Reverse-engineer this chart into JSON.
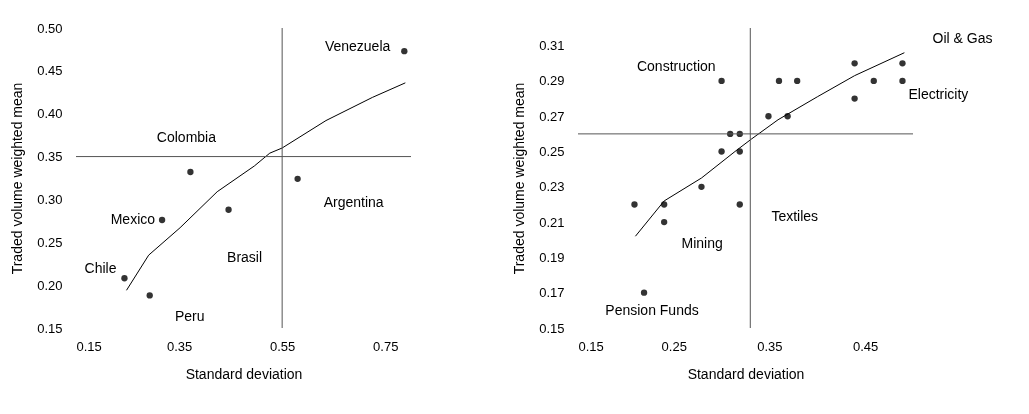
{
  "chart_data": [
    {
      "type": "scatter",
      "xlabel": "Standard deviation",
      "ylabel": "Traded volume weighted mean",
      "xlim": [
        0.15,
        0.8
      ],
      "ylim": [
        0.15,
        0.5
      ],
      "xticks": [
        0.15,
        0.35,
        0.55,
        0.75
      ],
      "yticks": [
        0.15,
        {
          "value": 0.2,
          "label": "0.20"
        },
        0.25,
        {
          "value": 0.3,
          "label": "0.30"
        },
        0.35,
        {
          "value": 0.4,
          "label": "0.40"
        },
        0.45,
        {
          "value": 0.5,
          "label": "0.50"
        }
      ],
      "grid": false,
      "series": [
        {
          "type": "scatter",
          "marker": "circle",
          "color": "#333333",
          "x": [
            0.244,
            0.293,
            0.317,
            0.372,
            0.446,
            0.58,
            0.787
          ],
          "values": [
            0.208,
            0.188,
            0.276,
            0.332,
            0.288,
            0.324,
            0.473
          ]
        },
        {
          "type": "line",
          "color": "#000000",
          "x": [
            0.248,
            0.291,
            0.352,
            0.424,
            0.496,
            0.526,
            0.55,
            0.635,
            0.725,
            0.789
          ],
          "values": [
            0.194,
            0.235,
            0.267,
            0.309,
            0.339,
            0.354,
            0.36,
            0.392,
            0.419,
            0.436
          ]
        }
      ],
      "ref_lines": [
        {
          "axis": "x",
          "value": 0.55
        },
        {
          "axis": "y",
          "value": 0.35
        }
      ],
      "annotations": [
        {
          "text": "Venezuela",
          "x": 0.787,
          "y": 0.473
        },
        {
          "text": "Colombia",
          "x": 0.372,
          "y": 0.332
        },
        {
          "text": "Mexico",
          "x": 0.317,
          "y": 0.276
        },
        {
          "text": "Chile",
          "x": 0.244,
          "y": 0.208
        },
        {
          "text": "Peru",
          "x": 0.293,
          "y": 0.188
        },
        {
          "text": "Brasil",
          "x": 0.446,
          "y": 0.288
        },
        {
          "text": "Argentina",
          "x": 0.58,
          "y": 0.324
        }
      ]
    },
    {
      "type": "scatter",
      "xlabel": "Standard deviation",
      "ylabel": "Traded volume weighted mean",
      "xlim": [
        0.15,
        0.5
      ],
      "ylim": [
        0.15,
        0.32
      ],
      "xticks": [
        0.15,
        0.25,
        0.35,
        0.45
      ],
      "yticks": [
        0.15,
        0.17,
        0.19,
        0.21,
        0.23,
        0.25,
        0.27,
        0.29,
        0.31
      ],
      "grid": false,
      "series": [
        {
          "type": "scatter",
          "marker": "circle",
          "color": "#333333",
          "x": [
            0.209,
            0.24,
            0.24,
            0.219,
            0.279,
            0.3,
            0.3,
            0.309,
            0.319,
            0.319,
            0.319,
            0.349,
            0.36,
            0.369,
            0.379,
            0.439,
            0.439,
            0.459,
            0.489,
            0.489
          ],
          "values": [
            0.22,
            0.22,
            0.21,
            0.17,
            0.23,
            0.29,
            0.25,
            0.26,
            0.26,
            0.25,
            0.22,
            0.27,
            0.29,
            0.27,
            0.29,
            0.3,
            0.28,
            0.29,
            0.3,
            0.29
          ]
        },
        {
          "type": "line",
          "color": "#000000",
          "x": [
            0.21,
            0.24,
            0.279,
            0.314,
            0.331,
            0.359,
            0.4,
            0.439,
            0.491
          ],
          "values": [
            0.202,
            0.222,
            0.235,
            0.25,
            0.257,
            0.268,
            0.281,
            0.293,
            0.306
          ]
        }
      ],
      "ref_lines": [
        {
          "axis": "x",
          "value": 0.33
        },
        {
          "axis": "y",
          "value": 0.26
        }
      ],
      "annotations": [
        {
          "text": "Oil & Gas",
          "x": 0.489,
          "y": 0.3
        },
        {
          "text": "Construction",
          "x": 0.3,
          "y": 0.29
        },
        {
          "text": "Electricity",
          "x": 0.489,
          "y": 0.29
        },
        {
          "text": "Textiles",
          "x": 0.319,
          "y": 0.22
        },
        {
          "text": "Mining",
          "x": 0.24,
          "y": 0.21
        },
        {
          "text": "Pension Funds",
          "x": 0.219,
          "y": 0.17
        }
      ]
    }
  ]
}
